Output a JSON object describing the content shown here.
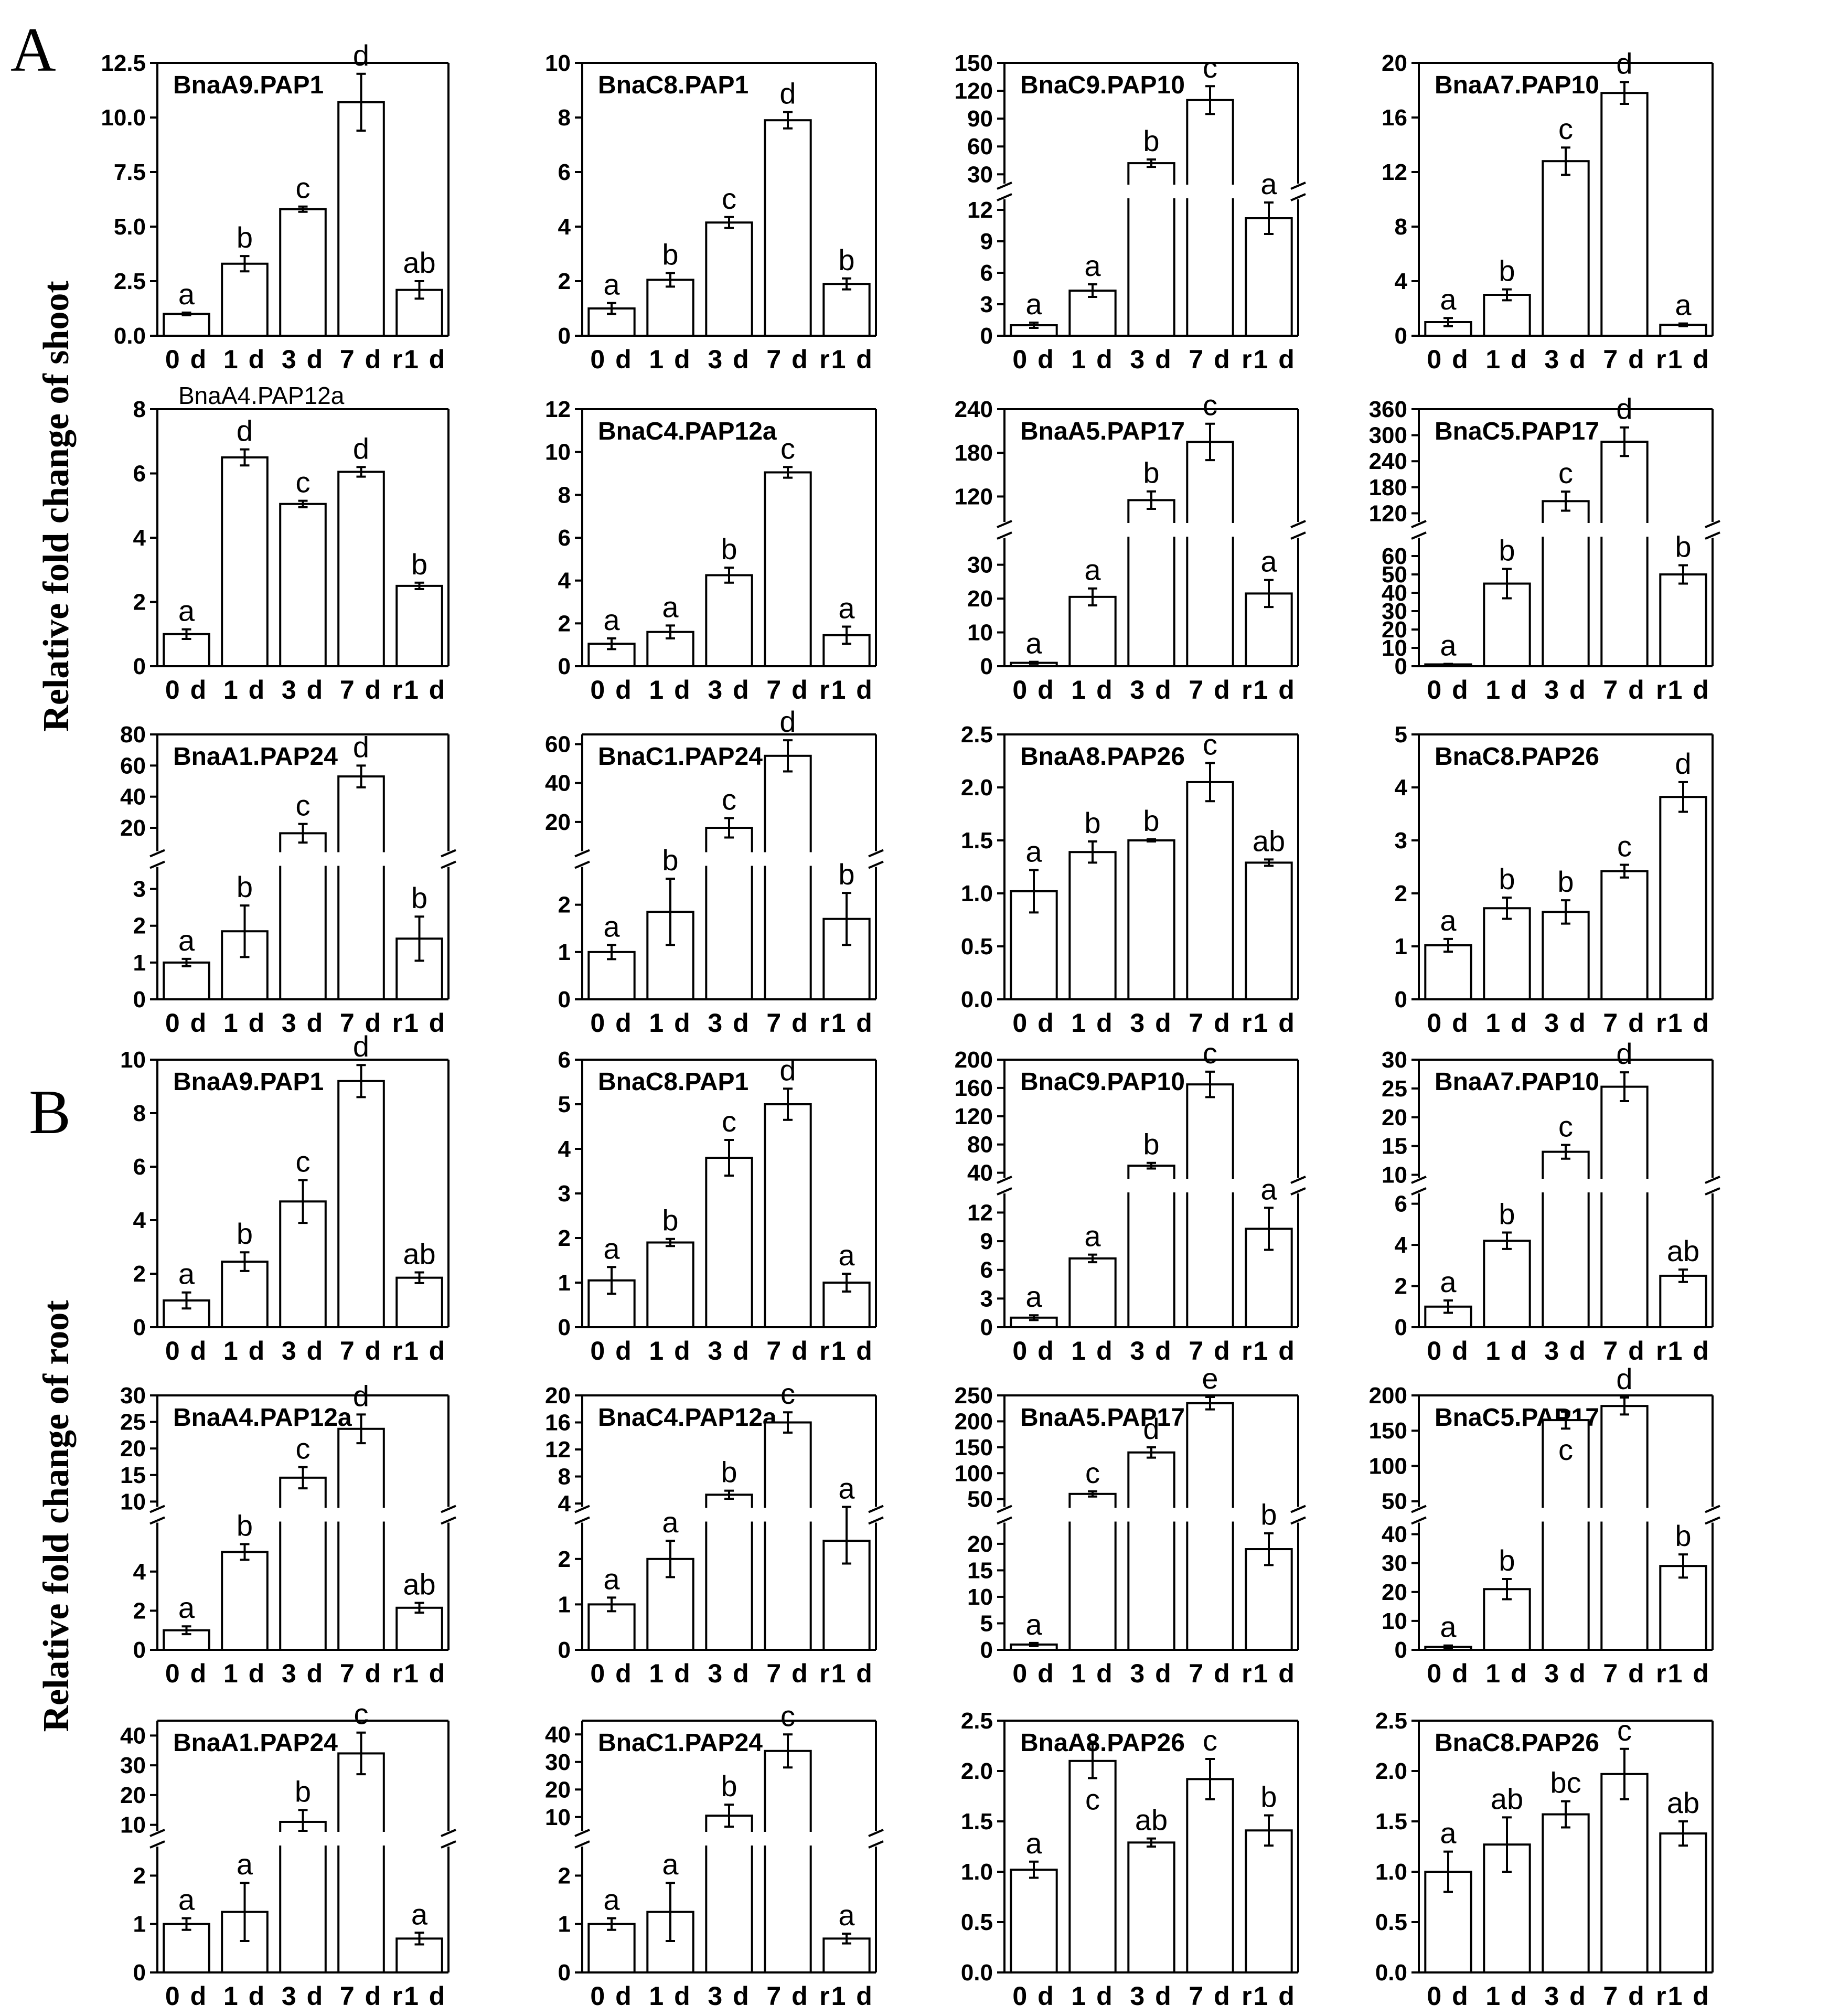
{
  "figure": {
    "panel_A_label": "A",
    "panel_B_label": "B",
    "shoot_ylabel": "Relative fold change of shoot",
    "root_ylabel": "Relative fold change of root"
  },
  "chart_data": [
    {
      "type": "bar",
      "panel": "A",
      "title": "BnaA9.PAP1",
      "categories": [
        "0 d",
        "1 d",
        "3 d",
        "7 d",
        "r1 d"
      ],
      "values": [
        1.0,
        3.3,
        5.8,
        10.7,
        2.1
      ],
      "errors": [
        0.06,
        0.35,
        0.12,
        1.3,
        0.4
      ],
      "letters": [
        "a",
        "b",
        "c",
        "d",
        "ab"
      ],
      "yticks": [
        "0.0",
        "2.5",
        "5.0",
        "7.5",
        "10.0",
        "12.5"
      ],
      "ylim": [
        0,
        12.5
      ]
    },
    {
      "type": "bar",
      "panel": "A",
      "title": "BnaC8.PAP1",
      "categories": [
        "0 d",
        "1 d",
        "3 d",
        "7 d",
        "r1 d"
      ],
      "values": [
        1.0,
        2.05,
        4.15,
        7.9,
        1.9
      ],
      "errors": [
        0.2,
        0.25,
        0.2,
        0.3,
        0.2
      ],
      "letters": [
        "a",
        "b",
        "c",
        "d",
        "b"
      ],
      "yticks": [
        "0",
        "2",
        "4",
        "6",
        "8",
        "10"
      ],
      "ylim": [
        0,
        10
      ]
    },
    {
      "type": "bar",
      "panel": "A",
      "title": "BnaC9.PAP10",
      "categories": [
        "0 d",
        "1 d",
        "3 d",
        "7 d",
        "r1 d"
      ],
      "values": [
        1.0,
        4.3,
        42,
        110,
        11.2
      ],
      "errors": [
        0.25,
        0.6,
        4,
        15,
        1.5
      ],
      "letters": [
        "a",
        "a",
        "b",
        "c",
        "a"
      ],
      "yticks": [
        "0",
        "3",
        "6",
        "9",
        "12",
        "30",
        "60",
        "90",
        "120",
        "150"
      ],
      "axis_break": {
        "lower": [
          0,
          13
        ],
        "upper": [
          20,
          150
        ]
      }
    },
    {
      "type": "bar",
      "panel": "A",
      "title": "BnaA7.PAP10",
      "categories": [
        "0 d",
        "1 d",
        "3 d",
        "7 d",
        "r1 d"
      ],
      "values": [
        1.0,
        3.0,
        12.8,
        17.8,
        0.8
      ],
      "errors": [
        0.3,
        0.4,
        1.0,
        0.8,
        0.1
      ],
      "letters": [
        "a",
        "b",
        "c",
        "d",
        "a"
      ],
      "yticks": [
        "0",
        "4",
        "8",
        "12",
        "16",
        "20"
      ],
      "ylim": [
        0,
        20
      ]
    },
    {
      "type": "bar",
      "panel": "A",
      "title": "BnaA4.PAP12a",
      "title_style": "plain",
      "categories": [
        "0 d",
        "1 d",
        "3 d",
        "7 d",
        "r1 d"
      ],
      "values": [
        1.0,
        6.5,
        5.05,
        6.05,
        2.5
      ],
      "errors": [
        0.15,
        0.25,
        0.1,
        0.15,
        0.1
      ],
      "letters": [
        "a",
        "d",
        "c",
        "d",
        "b"
      ],
      "yticks": [
        "0",
        "2",
        "4",
        "6",
        "8"
      ],
      "ylim": [
        0,
        8
      ]
    },
    {
      "type": "bar",
      "panel": "A",
      "title": "BnaC4.PAP12a",
      "categories": [
        "0 d",
        "1 d",
        "3 d",
        "7 d",
        "r1 d"
      ],
      "values": [
        1.05,
        1.6,
        4.25,
        9.05,
        1.45
      ],
      "errors": [
        0.25,
        0.3,
        0.35,
        0.25,
        0.4
      ],
      "letters": [
        "a",
        "a",
        "b",
        "c",
        "a"
      ],
      "yticks": [
        "0",
        "2",
        "4",
        "6",
        "8",
        "10",
        "12"
      ],
      "ylim": [
        0,
        12
      ]
    },
    {
      "type": "bar",
      "panel": "A",
      "title": "BnaA5.PAP17",
      "categories": [
        "0 d",
        "1 d",
        "3 d",
        "7 d",
        "r1 d"
      ],
      "values": [
        1.0,
        20.5,
        115,
        195,
        21.5
      ],
      "errors": [
        0.3,
        2.5,
        12,
        25,
        4
      ],
      "letters": [
        "a",
        "a",
        "b",
        "c",
        "a"
      ],
      "yticks": [
        "0",
        "10",
        "20",
        "30",
        "120",
        "180",
        "240"
      ],
      "axis_break": {
        "lower": [
          0,
          38
        ],
        "upper": [
          85,
          240
        ]
      }
    },
    {
      "type": "bar",
      "panel": "A",
      "title": "BnaC5.PAP17",
      "categories": [
        "0 d",
        "1 d",
        "3 d",
        "7 d",
        "r1 d"
      ],
      "values": [
        1.0,
        45,
        148,
        285,
        50
      ],
      "errors": [
        0.3,
        8,
        22,
        33,
        5
      ],
      "letters": [
        "a",
        "b",
        "c",
        "d",
        "b"
      ],
      "yticks": [
        "0",
        "10",
        "20",
        "30",
        "40",
        "50",
        "60",
        "120",
        "180",
        "240",
        "300",
        "360"
      ],
      "axis_break": {
        "lower": [
          0,
          70
        ],
        "upper": [
          100,
          360
        ]
      }
    },
    {
      "type": "bar",
      "panel": "A",
      "title": "BnaA1.PAP24",
      "categories": [
        "0 d",
        "1 d",
        "3 d",
        "7 d",
        "r1 d"
      ],
      "values": [
        1.0,
        1.85,
        16.5,
        53,
        1.65
      ],
      "errors": [
        0.1,
        0.7,
        6,
        7,
        0.6
      ],
      "letters": [
        "a",
        "b",
        "c",
        "d",
        "b"
      ],
      "yticks": [
        "0",
        "1",
        "2",
        "3",
        "20",
        "40",
        "60",
        "80"
      ],
      "axis_break": {
        "lower": [
          0,
          3.6
        ],
        "upper": [
          5,
          80
        ]
      }
    },
    {
      "type": "bar",
      "panel": "A",
      "title": "BnaC1.PAP24",
      "categories": [
        "0 d",
        "1 d",
        "3 d",
        "7 d",
        "r1 d"
      ],
      "values": [
        1.0,
        1.85,
        17,
        54,
        1.7
      ],
      "errors": [
        0.15,
        0.7,
        5,
        8,
        0.55
      ],
      "letters": [
        "a",
        "b",
        "c",
        "d",
        "b"
      ],
      "yticks": [
        "0",
        "1",
        "2",
        "20",
        "40",
        "60"
      ],
      "axis_break": {
        "lower": [
          0,
          2.8
        ],
        "upper": [
          5,
          65
        ]
      }
    },
    {
      "type": "bar",
      "panel": "A",
      "title": "BnaA8.PAP26",
      "categories": [
        "0 d",
        "1 d",
        "3 d",
        "7 d",
        "r1 d"
      ],
      "values": [
        1.02,
        1.39,
        1.5,
        2.05,
        1.29
      ],
      "errors": [
        0.2,
        0.1,
        0.01,
        0.18,
        0.03
      ],
      "letters": [
        "a",
        "b",
        "b",
        "c",
        "ab"
      ],
      "yticks": [
        "0.0",
        "0.5",
        "1.0",
        "1.5",
        "2.0",
        "2.5"
      ],
      "ylim": [
        0,
        2.5
      ]
    },
    {
      "type": "bar",
      "panel": "A",
      "title": "BnaC8.PAP26",
      "categories": [
        "0 d",
        "1 d",
        "3 d",
        "7 d",
        "r1 d"
      ],
      "values": [
        1.02,
        1.72,
        1.65,
        2.42,
        3.82
      ],
      "errors": [
        0.12,
        0.2,
        0.22,
        0.12,
        0.28
      ],
      "letters": [
        "a",
        "b",
        "b",
        "c",
        "d"
      ],
      "yticks": [
        "0",
        "1",
        "2",
        "3",
        "4",
        "5"
      ],
      "ylim": [
        0,
        5
      ]
    },
    {
      "type": "bar",
      "panel": "B",
      "title": "BnaA9.PAP1",
      "categories": [
        "0 d",
        "1 d",
        "3 d",
        "7 d",
        "r1 d"
      ],
      "values": [
        1.0,
        2.45,
        4.7,
        9.2,
        1.85
      ],
      "errors": [
        0.3,
        0.35,
        0.8,
        0.6,
        0.2
      ],
      "letters": [
        "a",
        "b",
        "c",
        "d",
        "ab"
      ],
      "yticks": [
        "0",
        "2",
        "4",
        "6",
        "8",
        "10"
      ],
      "ylim": [
        0,
        10
      ]
    },
    {
      "type": "bar",
      "panel": "B",
      "title": "BnaC8.PAP1",
      "categories": [
        "0 d",
        "1 d",
        "3 d",
        "7 d",
        "r1 d"
      ],
      "values": [
        1.05,
        1.9,
        3.8,
        5.0,
        1.0
      ],
      "errors": [
        0.3,
        0.08,
        0.4,
        0.35,
        0.2
      ],
      "letters": [
        "a",
        "b",
        "c",
        "d",
        "a"
      ],
      "yticks": [
        "0",
        "1",
        "2",
        "3",
        "4",
        "5",
        "6"
      ],
      "ylim": [
        0,
        6
      ]
    },
    {
      "type": "bar",
      "panel": "B",
      "title": "BnaC9.PAP10",
      "categories": [
        "0 d",
        "1 d",
        "3 d",
        "7 d",
        "r1 d"
      ],
      "values": [
        1.0,
        7.2,
        50,
        165,
        10.3
      ],
      "errors": [
        0.25,
        0.4,
        4,
        18,
        2.2
      ],
      "letters": [
        "a",
        "a",
        "b",
        "c",
        "a"
      ],
      "yticks": [
        "0",
        "3",
        "6",
        "9",
        "12",
        "40",
        "80",
        "120",
        "160",
        "200"
      ],
      "axis_break": {
        "lower": [
          0,
          14
        ],
        "upper": [
          33,
          200
        ]
      }
    },
    {
      "type": "bar",
      "panel": "B",
      "title": "BnaA7.PAP10",
      "categories": [
        "0 d",
        "1 d",
        "3 d",
        "7 d",
        "r1 d"
      ],
      "values": [
        1.0,
        4.2,
        14,
        25.3,
        2.5
      ],
      "errors": [
        0.3,
        0.4,
        1.2,
        2.5,
        0.3
      ],
      "letters": [
        "a",
        "b",
        "c",
        "d",
        "ab"
      ],
      "yticks": [
        "0",
        "2",
        "4",
        "6",
        "10",
        "15",
        "20",
        "25",
        "30"
      ],
      "axis_break": {
        "lower": [
          0,
          6.5
        ],
        "upper": [
          9.5,
          30
        ]
      }
    },
    {
      "type": "bar",
      "panel": "B",
      "title": "BnaA4.PAP12a",
      "categories": [
        "0 d",
        "1 d",
        "3 d",
        "7 d",
        "r1 d"
      ],
      "values": [
        1.0,
        5.0,
        14.5,
        23.7,
        2.15
      ],
      "errors": [
        0.2,
        0.4,
        2.0,
        2.7,
        0.25
      ],
      "letters": [
        "a",
        "b",
        "c",
        "d",
        "ab"
      ],
      "yticks": [
        "0",
        "2",
        "4",
        "10",
        "15",
        "20",
        "25",
        "30"
      ],
      "axis_break": {
        "lower": [
          0,
          6.5
        ],
        "upper": [
          9,
          30
        ]
      }
    },
    {
      "type": "bar",
      "panel": "B",
      "title": "BnaC4.PAP12a",
      "categories": [
        "0 d",
        "1 d",
        "3 d",
        "7 d",
        "r1 d"
      ],
      "values": [
        1.0,
        2.0,
        5.3,
        16.0,
        2.4
      ],
      "errors": [
        0.15,
        0.4,
        0.6,
        1.5,
        0.5
      ],
      "letters": [
        "a",
        "a",
        "b",
        "c",
        "a"
      ],
      "yticks": [
        "0",
        "1",
        "2",
        "4",
        "8",
        "12",
        "16",
        "20"
      ],
      "axis_break": {
        "lower": [
          0,
          2.8
        ],
        "upper": [
          3.5,
          20
        ]
      }
    },
    {
      "type": "bar",
      "panel": "B",
      "title": "BnaA5.PAP17",
      "categories": [
        "0 d",
        "1 d",
        "3 d",
        "7 d",
        "r1 d"
      ],
      "values": [
        1.0,
        60,
        140,
        235,
        19
      ],
      "errors": [
        0.3,
        5,
        10,
        12,
        3
      ],
      "letters": [
        "a",
        "c",
        "d",
        "e",
        "b"
      ],
      "yticks": [
        "0",
        "5",
        "10",
        "15",
        "20",
        "50",
        "100",
        "150",
        "200",
        "250"
      ],
      "axis_break": {
        "lower": [
          0,
          24
        ],
        "upper": [
          35,
          250
        ]
      }
    },
    {
      "type": "bar",
      "panel": "B",
      "title": "BnaC5.PAP17",
      "categories": [
        "0 d",
        "1 d",
        "3 d",
        "7 d",
        "r1 d"
      ],
      "values": [
        1.0,
        21,
        165,
        185,
        29
      ],
      "errors": [
        0.5,
        3.5,
        12,
        12,
        4
      ],
      "letters": [
        "a",
        "b",
        "c",
        "d",
        "b"
      ],
      "letter_positions": [
        "above",
        "above",
        "below",
        "above",
        "above"
      ],
      "yticks": [
        "0",
        "10",
        "20",
        "30",
        "40",
        "50",
        "100",
        "150",
        "200"
      ],
      "axis_break": {
        "lower": [
          0,
          44
        ],
        "upper": [
          42,
          200
        ]
      }
    },
    {
      "type": "bar",
      "panel": "B",
      "title": "BnaA1.PAP24",
      "categories": [
        "0 d",
        "1 d",
        "3 d",
        "7 d",
        "r1 d"
      ],
      "values": [
        1.0,
        1.25,
        11,
        34,
        0.7
      ],
      "errors": [
        0.12,
        0.6,
        4,
        7,
        0.12
      ],
      "letters": [
        "a",
        "a",
        "b",
        "c",
        "a"
      ],
      "yticks": [
        "0",
        "1",
        "2",
        "10",
        "20",
        "30",
        "40"
      ],
      "axis_break": {
        "lower": [
          0,
          2.6
        ],
        "upper": [
          8,
          45
        ]
      }
    },
    {
      "type": "bar",
      "panel": "B",
      "title": "BnaC1.PAP24",
      "categories": [
        "0 d",
        "1 d",
        "3 d",
        "7 d",
        "r1 d"
      ],
      "values": [
        1.0,
        1.25,
        10.5,
        34,
        0.7
      ],
      "errors": [
        0.12,
        0.6,
        4,
        6,
        0.1
      ],
      "letters": [
        "a",
        "a",
        "b",
        "c",
        "a"
      ],
      "yticks": [
        "0",
        "1",
        "2",
        "10",
        "20",
        "30",
        "40"
      ],
      "axis_break": {
        "lower": [
          0,
          2.6
        ],
        "upper": [
          5,
          45
        ]
      }
    },
    {
      "type": "bar",
      "panel": "B",
      "title": "BnaA8.PAP26",
      "categories": [
        "0 d",
        "1 d",
        "3 d",
        "7 d",
        "r1 d"
      ],
      "values": [
        1.02,
        2.1,
        1.29,
        1.92,
        1.41
      ],
      "errors": [
        0.08,
        0.17,
        0.04,
        0.2,
        0.15
      ],
      "letters": [
        "a",
        "c",
        "ab",
        "c",
        "b"
      ],
      "letter_positions": [
        "above",
        "below",
        "above",
        "above",
        "above"
      ],
      "yticks": [
        "0.0",
        "0.5",
        "1.0",
        "1.5",
        "2.0",
        "2.5"
      ],
      "ylim": [
        0,
        2.5
      ]
    },
    {
      "type": "bar",
      "panel": "B",
      "title": "BnaC8.PAP26",
      "categories": [
        "0 d",
        "1 d",
        "3 d",
        "7 d",
        "r1 d"
      ],
      "values": [
        1.0,
        1.27,
        1.57,
        1.97,
        1.38
      ],
      "errors": [
        0.2,
        0.27,
        0.13,
        0.25,
        0.12
      ],
      "letters": [
        "a",
        "ab",
        "bc",
        "c",
        "ab"
      ],
      "yticks": [
        "0.0",
        "0.5",
        "1.0",
        "1.5",
        "2.0",
        "2.5"
      ],
      "ylim": [
        0,
        2.5
      ]
    }
  ]
}
